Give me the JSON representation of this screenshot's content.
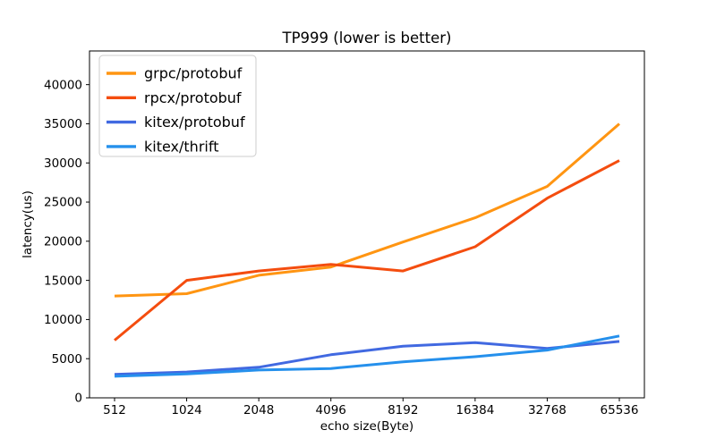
{
  "chart_data": {
    "type": "line",
    "title": "TP999 (lower is better)",
    "xlabel": "echo size(Byte)",
    "ylabel": "latency(us)",
    "categories": [
      "512",
      "1024",
      "2048",
      "4096",
      "8192",
      "16384",
      "32768",
      "65536"
    ],
    "series": [
      {
        "name": "grpc/protobuf",
        "color": "#FF9512",
        "values": [
          13000,
          13300,
          15650,
          16700,
          19900,
          23000,
          27000,
          35000
        ]
      },
      {
        "name": "rpcx/protobuf",
        "color": "#F44D0F",
        "values": [
          7350,
          15000,
          16200,
          17050,
          16200,
          19300,
          25500,
          30300
        ]
      },
      {
        "name": "kitex/protobuf",
        "color": "#4169E1",
        "values": [
          3000,
          3300,
          3900,
          5500,
          6600,
          7050,
          6300,
          7200
        ]
      },
      {
        "name": "kitex/thrift",
        "color": "#2590EC",
        "values": [
          2750,
          3050,
          3550,
          3750,
          4600,
          5250,
          6100,
          7900
        ]
      }
    ],
    "yticks": [
      0,
      5000,
      10000,
      15000,
      20000,
      25000,
      30000,
      35000,
      40000
    ],
    "ylim": [
      0,
      44300
    ],
    "legend_position": "upper-left",
    "grid": false,
    "axis_color": "#000000",
    "legend_border_color": "#CCCCCC",
    "background_color": "#FFFFFF"
  }
}
